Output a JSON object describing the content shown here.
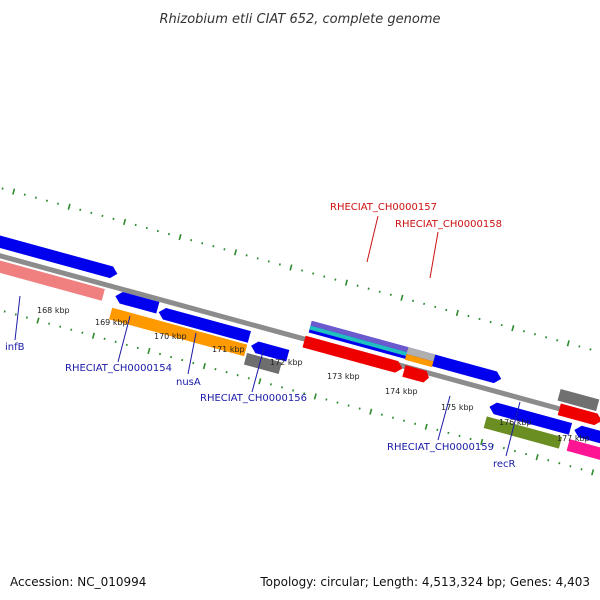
{
  "title": "Rhizobium etli CIAT 652, complete genome",
  "footer": {
    "accession": "Accession: NC_010994",
    "info": "Topology: circular; Length: 4,513,324 bp; Genes: 4,403"
  },
  "kbp_ticks": [
    "168 kbp",
    "169 kbp",
    "170 kbp",
    "171 kbp",
    "172 kbp",
    "173 kbp",
    "174 kbp",
    "175 kbp",
    "176 kbp",
    "177 kbp"
  ],
  "gene_labels": [
    {
      "text": "infB",
      "color": "#1a1aa6"
    },
    {
      "text": "RHECIAT_CH0000154",
      "color": "#1a1aa6"
    },
    {
      "text": "nusA",
      "color": "#1a1aa6"
    },
    {
      "text": "RHECIAT_CH0000156",
      "color": "#1a1aa6"
    },
    {
      "text": "RHECIAT_CH0000157",
      "color": "#cc1111"
    },
    {
      "text": "RHECIAT_CH0000158",
      "color": "#cc1111"
    },
    {
      "text": "RHECIAT_CH0000159",
      "color": "#1a1aa6"
    },
    {
      "text": "recR",
      "color": "#1a1aa6"
    }
  ],
  "colors": {
    "backbone": "#8c8c8c",
    "tick_green": "#2e8b2e",
    "cds_forward": "#0000ee",
    "cds_reverse": "#0000ee",
    "cog_pink": "#f08080",
    "cog_orange": "#ff9900",
    "cog_gray": "#6e6e6e",
    "cog_red": "#ee0000",
    "cog_olive": "#6b8e23",
    "cog_magenta": "#ff1493",
    "cog_cyan": "#20c0c0",
    "cog_purple": "#6a5acd"
  }
}
